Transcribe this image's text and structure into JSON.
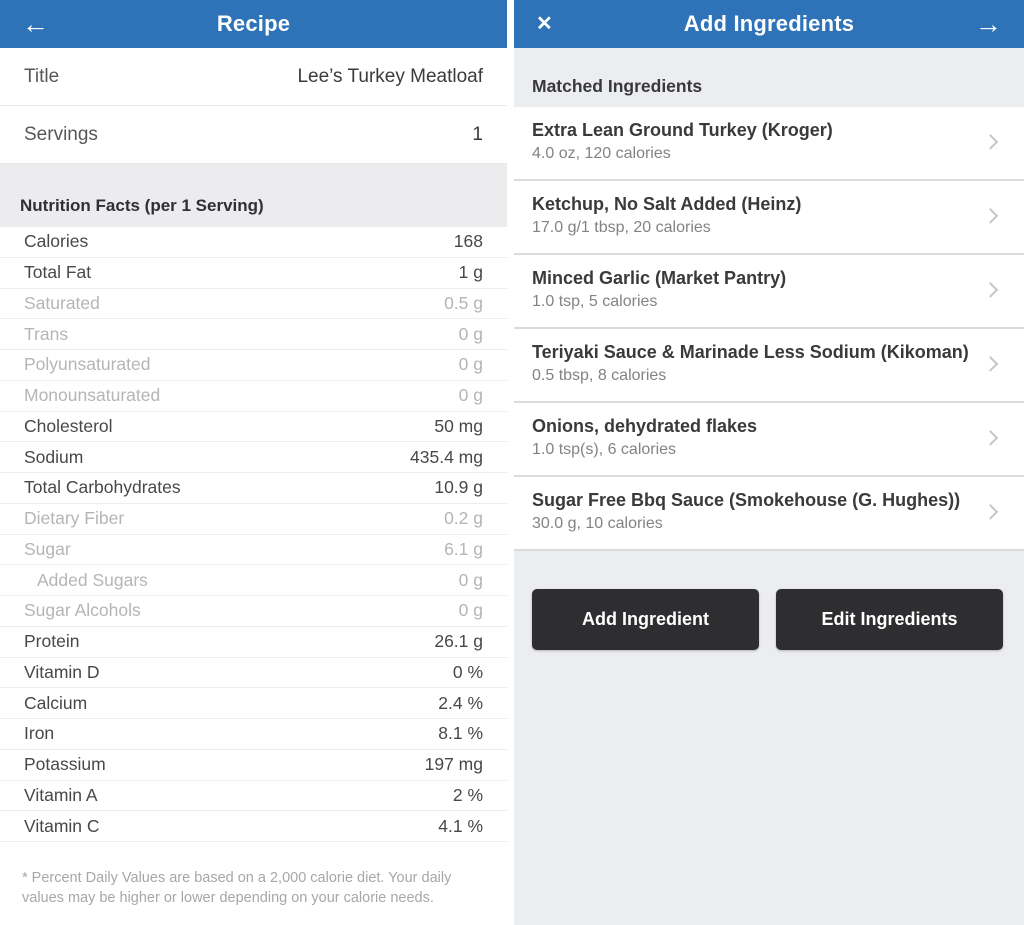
{
  "colors": {
    "header_blue": "#2e73b7",
    "button_dark": "#2e2e30",
    "muted_text": "#b5b5b7",
    "section_gray": "#ececee"
  },
  "left_panel": {
    "header": {
      "title": "Recipe",
      "back_icon": "←"
    },
    "fields": [
      {
        "label": "Title",
        "value": "Lee’s Turkey Meatloaf"
      },
      {
        "label": "Servings",
        "value": "1"
      }
    ],
    "section_header": "Nutrition Facts (per 1 Serving)",
    "nutrition_rows": [
      {
        "label": "Calories",
        "value": "168"
      },
      {
        "label": "Total Fat",
        "value": "1 g"
      },
      {
        "label": "Saturated",
        "value": "0.5 g",
        "muted": true
      },
      {
        "label": "Trans",
        "value": "0 g",
        "muted": true
      },
      {
        "label": "Polyunsaturated",
        "value": "0 g",
        "muted": true
      },
      {
        "label": "Monounsaturated",
        "value": "0 g",
        "muted": true
      },
      {
        "label": "Cholesterol",
        "value": "50 mg"
      },
      {
        "label": "Sodium",
        "value": "435.4 mg"
      },
      {
        "label": "Total Carbohydrates",
        "value": "10.9 g"
      },
      {
        "label": "Dietary Fiber",
        "value": "0.2 g",
        "muted": true
      },
      {
        "label": "Sugar",
        "value": "6.1 g",
        "muted": true
      },
      {
        "label": "Added Sugars",
        "value": "0 g",
        "muted": true,
        "indent": true
      },
      {
        "label": "Sugar Alcohols",
        "value": "0 g",
        "muted": true
      },
      {
        "label": "Protein",
        "value": "26.1 g"
      },
      {
        "label": "Vitamin D",
        "value": "0 %"
      },
      {
        "label": "Calcium",
        "value": "2.4 %"
      },
      {
        "label": "Iron",
        "value": "8.1 %"
      },
      {
        "label": "Potassium",
        "value": "197 mg"
      },
      {
        "label": "Vitamin A",
        "value": "2 %"
      },
      {
        "label": "Vitamin C",
        "value": "4.1 %"
      }
    ],
    "footnote": "* Percent Daily Values are based on a 2,000 calorie diet.  Your daily values may be higher or lower depending on your calorie needs."
  },
  "right_panel": {
    "header": {
      "title": "Add Ingredients",
      "close_icon": "✕",
      "next_icon": "→"
    },
    "section_header": "Matched Ingredients",
    "ingredients": [
      {
        "name": "Extra Lean Ground Turkey (Kroger)",
        "detail": "4.0 oz, 120 calories"
      },
      {
        "name": "Ketchup, No Salt Added (Heinz)",
        "detail": "17.0 g/1 tbsp, 20 calories"
      },
      {
        "name": "Minced Garlic (Market Pantry)",
        "detail": "1.0 tsp, 5 calories"
      },
      {
        "name": "Teriyaki Sauce & Marinade Less Sodium (Kikoman)",
        "detail": "0.5 tbsp, 8 calories"
      },
      {
        "name": "Onions, dehydrated flakes",
        "detail": "1.0 tsp(s), 6 calories"
      },
      {
        "name": "Sugar Free Bbq Sauce (Smokehouse (G. Hughes))",
        "detail": "30.0 g, 10 calories"
      }
    ],
    "buttons": [
      {
        "label": "Add Ingredient"
      },
      {
        "label": "Edit Ingredients"
      }
    ]
  }
}
